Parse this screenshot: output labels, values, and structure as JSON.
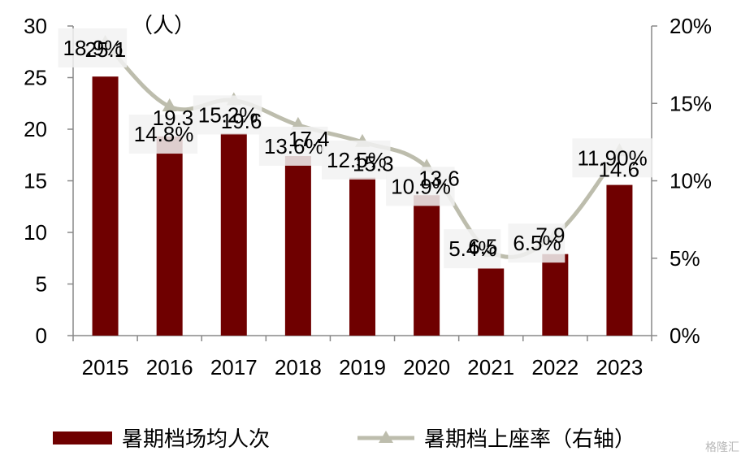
{
  "chart_data": {
    "type": "bar",
    "categories": [
      "2015",
      "2016",
      "2017",
      "2018",
      "2019",
      "2020",
      "2021",
      "2022",
      "2023"
    ],
    "series": [
      {
        "name": "暑期档场均人次",
        "type": "bar",
        "axis": "left",
        "values": [
          25.1,
          19.3,
          19.6,
          17.4,
          15.3,
          13.6,
          6.5,
          7.9,
          14.6
        ],
        "labels": [
          "25.1",
          "19.3",
          "19.6",
          "17.4",
          "15.3",
          "13.6",
          "6.5",
          "7.9",
          "14.6"
        ]
      },
      {
        "name": "暑期档上座率（右轴）",
        "type": "line",
        "axis": "right",
        "values": [
          18.9,
          14.8,
          15.2,
          13.6,
          12.5,
          10.9,
          5.4,
          6.5,
          11.9
        ],
        "labels": [
          "18.9%",
          "14.8%",
          "15.2%",
          "13.6%",
          "12.5%",
          "10.9%",
          "5.4%",
          "6.5%",
          "11.90%"
        ]
      }
    ],
    "left_axis": {
      "unit": "（人）",
      "ylim": [
        0,
        30
      ],
      "ticks": [
        "0",
        "5",
        "10",
        "15",
        "20",
        "25",
        "30"
      ]
    },
    "right_axis": {
      "ylim": [
        0,
        20
      ],
      "ticks": [
        "0%",
        "5%",
        "10%",
        "15%",
        "20%"
      ]
    },
    "legend_position": "bottom",
    "colors": {
      "bar": "#6f0000",
      "line": "#bdbdad",
      "label_box": "#f2f2f2"
    }
  },
  "watermark": "格隆汇"
}
